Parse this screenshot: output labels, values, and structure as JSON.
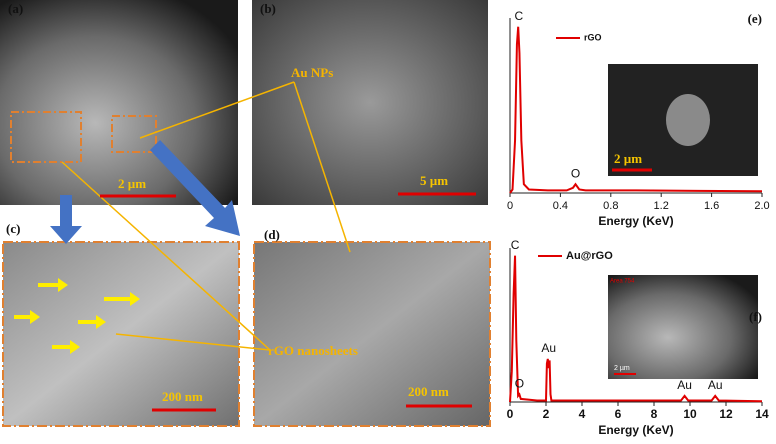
{
  "figure": {
    "panels": [
      "(a)",
      "(b)",
      "(c)",
      "(d)"
    ],
    "scale_bars": [
      "2 µm",
      "5 µm",
      "200 nm",
      "200 nm"
    ],
    "annotations": [
      "Au NPs",
      "rGO nanosheets"
    ],
    "insets": [
      {
        "scale_bar": "2 µm"
      },
      {
        "label": "Area 754",
        "scale_bar": "2 µm"
      }
    ]
  },
  "chart_data": [
    {
      "type": "line",
      "title": "(e)",
      "x_label": "Energy (KeV)",
      "xlim": [
        0,
        2.0
      ],
      "xticks": [
        0,
        0.4,
        0.8,
        1.2,
        1.6,
        {
          "value": 2,
          "label": "2.0"
        }
      ],
      "ylim": [
        0,
        100
      ],
      "x": [
        0,
        0.02,
        0.04,
        0.055,
        0.065,
        0.075,
        0.09,
        0.11,
        0.15,
        0.3,
        0.45,
        0.5,
        0.52,
        0.55,
        0.6,
        1.0,
        1.5,
        2.0
      ],
      "series": [
        {
          "name": "rGO",
          "color": "#e00000",
          "values": [
            0,
            2,
            30,
            85,
            95,
            80,
            30,
            5,
            2,
            1.5,
            1.5,
            3,
            5,
            2,
            1.5,
            1.5,
            1.2,
            1
          ]
        }
      ],
      "annotations": [
        {
          "text": "C",
          "x": 0.07,
          "y": 95
        },
        {
          "text": "O",
          "x": 0.52,
          "y": 5
        }
      ]
    },
    {
      "type": "line",
      "title": "(f)",
      "x_label": "Energy (KeV)",
      "xlim": [
        0,
        14
      ],
      "xticks": [
        0,
        2,
        4,
        6,
        8,
        10,
        12,
        14
      ],
      "ylim": [
        0,
        100
      ],
      "x": [
        0,
        0.1,
        0.2,
        0.28,
        0.35,
        0.45,
        0.52,
        0.6,
        1.5,
        2.0,
        2.05,
        2.1,
        2.15,
        2.2,
        2.25,
        2.3,
        3,
        9.5,
        9.7,
        9.9,
        11.2,
        11.4,
        11.6,
        14
      ],
      "series": [
        {
          "name": "Au@rGO",
          "color": "#e00000",
          "values": [
            0,
            20,
            70,
            95,
            40,
            4,
            5,
            2,
            1,
            1,
            25,
            28,
            22,
            27,
            5,
            1,
            1,
            1,
            4,
            1,
            1,
            4,
            1,
            0.5
          ]
        }
      ],
      "annotations": [
        {
          "text": "C",
          "x": 0.28,
          "y": 95
        },
        {
          "text": "O",
          "x": 0.52,
          "y": 5
        },
        {
          "text": "Au",
          "x": 2.15,
          "y": 28
        },
        {
          "text": "Au",
          "x": 9.7,
          "y": 4
        },
        {
          "text": "Au",
          "x": 11.4,
          "y": 4
        }
      ]
    }
  ]
}
